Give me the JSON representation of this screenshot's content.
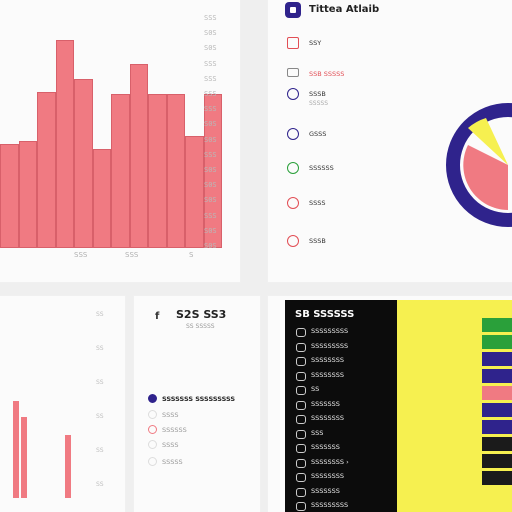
{
  "panel_a": {
    "chart_data": {
      "type": "bar",
      "values": [
        42,
        43,
        63,
        84,
        68,
        40,
        62,
        74,
        62,
        62,
        45,
        62
      ],
      "ylim": [
        0,
        100
      ],
      "ytick_labels": [
        "SSS",
        "S0S",
        "S0S",
        "SSS",
        "SSS",
        "SSS",
        "SSS",
        "S0S",
        "S0S",
        "SSS",
        "S0S",
        "S0S",
        "S0S",
        "SSS",
        "S0S",
        "S0S"
      ],
      "xtick_labels": [
        "SSS",
        "SSS",
        "S"
      ]
    }
  },
  "panel_b": {
    "title": "Tittea Atlaib",
    "items": [
      {
        "label": "SSY",
        "icon": "document-icon",
        "color": "#e24e55"
      },
      {
        "label": "SSB SSSSS",
        "icon": "card-icon",
        "color": "#888888",
        "value_color": "#e24e55"
      },
      {
        "label": "SSSB",
        "icon": "clock-icon",
        "color": "#2f238c",
        "sub": "SSSSS"
      },
      {
        "label": "GSSS",
        "icon": "chat-icon",
        "color": "#2f238c"
      },
      {
        "label": "SSSSSS",
        "icon": "message-icon",
        "color": "#2aa03a"
      },
      {
        "label": "SSSS",
        "icon": "target-icon",
        "color": "#e24e55"
      },
      {
        "label": "SSSB",
        "icon": "pie-icon",
        "color": "#e24e55"
      }
    ],
    "gauge": {
      "colors": [
        "#2f238c",
        "#f07a82",
        "#f6f050"
      ]
    }
  },
  "panel_c": {
    "chart_data": {
      "type": "bar",
      "values": [
        88,
        74,
        0,
        0,
        0,
        57
      ],
      "ytick_labels": [
        "SS",
        "SS",
        "SS",
        "SS",
        "SS",
        "SS"
      ]
    }
  },
  "panel_d": {
    "icon": "f",
    "title": "S2S SS3",
    "subtitle": "SS SSSSS",
    "legend": [
      {
        "label": "SSSSSSS SSSSSSSSS",
        "color": "#2f238c"
      },
      {
        "label": "SSSS",
        "color": "#dddddd"
      },
      {
        "label": "SSSSSS",
        "color": "#f07a82"
      },
      {
        "label": "SSSS",
        "color": "#dddddd"
      },
      {
        "label": "SSSSS",
        "color": "#dddddd"
      }
    ]
  },
  "panel_e": {
    "title": "SB SSSSSS",
    "items": [
      {
        "label": "SSSSSSSSS"
      },
      {
        "label": "SSSSSSSSS"
      },
      {
        "label": "SSSSSSSS"
      },
      {
        "label": "SSSSSSSS"
      },
      {
        "label": "SS"
      },
      {
        "label": "SSSSSSS"
      },
      {
        "label": "SSSSSSSS"
      },
      {
        "label": "SSS"
      },
      {
        "label": "SSSSSSS"
      },
      {
        "label": "SSSSSSSS  ›"
      },
      {
        "label": "SSSSSSSS"
      },
      {
        "label": "SSSSSSS"
      },
      {
        "label": "SSSSSSSSS"
      }
    ],
    "swatches": [
      "#2aa03a",
      "#2aa03a",
      "#2f238c",
      "#2f238c",
      "#f07a82",
      "#2f238c",
      "#2f238c",
      "#1b1b1b",
      "#1b1b1b",
      "#1b1b1b"
    ]
  }
}
